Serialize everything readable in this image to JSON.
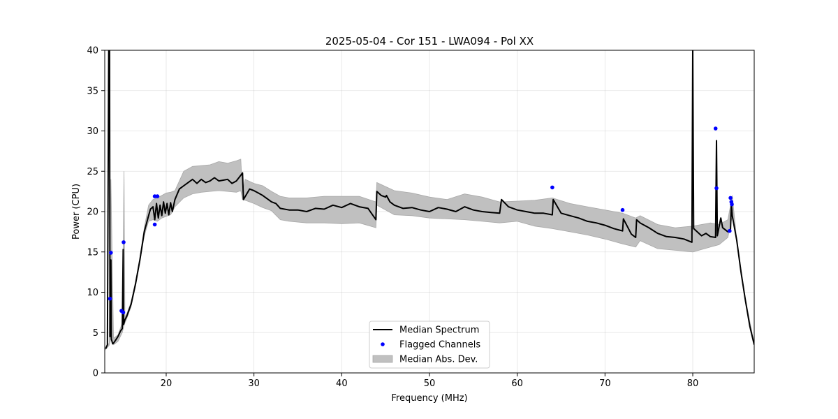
{
  "chart_data": {
    "type": "line",
    "title": "2025-05-04 - Cor 151 - LWA094 - Pol XX",
    "xlabel": "Frequency (MHz)",
    "ylabel": "Power (CPU)",
    "xlim": [
      13,
      87
    ],
    "ylim": [
      0,
      40
    ],
    "xticks": [
      20,
      30,
      40,
      50,
      60,
      70,
      80
    ],
    "yticks": [
      0,
      5,
      10,
      15,
      20,
      25,
      30,
      35,
      40
    ],
    "grid": true,
    "legend_position": "bottom-center",
    "colors": {
      "median": "#000000",
      "flagged": "#0000ff",
      "mad_fill": "#c0c0c0",
      "mad_edge": "#a8a8a8"
    },
    "series": [
      {
        "name": "Median Spectrum",
        "kind": "line",
        "x": [
          13.1,
          13.3,
          13.45,
          13.55,
          13.6,
          13.7,
          13.75,
          13.8,
          13.9,
          14.0,
          14.2,
          14.5,
          14.8,
          15.0,
          15.1,
          15.15,
          15.2,
          15.3,
          15.5,
          16.0,
          16.5,
          17.0,
          17.5,
          18.0,
          18.2,
          18.5,
          18.7,
          18.9,
          19.1,
          19.3,
          19.5,
          19.7,
          19.9,
          20.1,
          20.3,
          20.5,
          20.7,
          21.0,
          21.5,
          22.0,
          22.5,
          23.0,
          23.5,
          24.0,
          24.5,
          25.0,
          25.5,
          26.0,
          26.5,
          27.0,
          27.5,
          28.0,
          28.5,
          28.7,
          28.8,
          29.5,
          30.0,
          30.5,
          31.0,
          32.0,
          32.5,
          33.0,
          34.0,
          35.0,
          36.0,
          37.0,
          38.0,
          39.0,
          40.0,
          41.0,
          42.0,
          43.0,
          43.9,
          44.0,
          44.5,
          45.0,
          45.1,
          45.5,
          46.0,
          47.0,
          48.0,
          49.0,
          50.0,
          51.0,
          52.0,
          53.0,
          54.0,
          55.0,
          56.0,
          57.0,
          58.0,
          58.2,
          59.0,
          60.0,
          61.0,
          62.0,
          63.0,
          64.0,
          64.1,
          65.0,
          66.0,
          67.0,
          68.0,
          69.0,
          70.0,
          71.0,
          72.0,
          72.1,
          73.0,
          73.5,
          73.6,
          74.0,
          75.0,
          76.0,
          77.0,
          78.0,
          79.0,
          79.9,
          80.0,
          80.1,
          81.0,
          81.5,
          82.0,
          82.6,
          82.7,
          82.8,
          83.2,
          83.4,
          84.0,
          84.3,
          84.4,
          84.5,
          85.0,
          85.5,
          86.0,
          86.5,
          87.0
        ],
        "y": [
          3.0,
          3.5,
          40.0,
          40.0,
          4.5,
          14.0,
          4.2,
          4.0,
          3.6,
          3.7,
          4.0,
          4.5,
          5.2,
          5.5,
          15.3,
          6.0,
          6.2,
          6.6,
          7.0,
          8.5,
          11.0,
          14.0,
          17.5,
          19.5,
          20.3,
          20.6,
          19.0,
          21.0,
          19.2,
          20.8,
          19.5,
          21.2,
          19.8,
          21.0,
          19.6,
          21.1,
          20.0,
          21.5,
          22.8,
          23.2,
          23.6,
          24.0,
          23.5,
          24.0,
          23.6,
          23.8,
          24.2,
          23.8,
          23.9,
          24.0,
          23.5,
          23.8,
          24.5,
          24.8,
          21.5,
          22.8,
          22.6,
          22.3,
          22.0,
          21.2,
          21.0,
          20.4,
          20.2,
          20.2,
          20.0,
          20.4,
          20.3,
          20.8,
          20.5,
          21.0,
          20.6,
          20.4,
          19.0,
          22.5,
          22.0,
          21.8,
          22.0,
          21.2,
          20.8,
          20.4,
          20.5,
          20.2,
          20.0,
          20.5,
          20.3,
          20.0,
          20.6,
          20.2,
          20.0,
          19.9,
          19.8,
          21.5,
          20.6,
          20.2,
          20.0,
          19.8,
          19.8,
          19.6,
          21.5,
          19.8,
          19.5,
          19.2,
          18.8,
          18.6,
          18.3,
          17.9,
          17.6,
          19.1,
          17.2,
          16.8,
          19.0,
          18.6,
          18.0,
          17.3,
          16.9,
          16.8,
          16.6,
          16.2,
          40.0,
          17.9,
          17.0,
          17.3,
          16.9,
          16.8,
          28.8,
          17.0,
          19.2,
          18.0,
          17.5,
          17.8,
          21.0,
          19.5,
          16.5,
          12.5,
          9.0,
          5.8,
          3.5
        ]
      },
      {
        "name": "Flagged Channels",
        "kind": "scatter",
        "x": [
          13.6,
          13.7,
          14.9,
          15.1,
          15.15,
          18.7,
          18.7,
          19.0,
          64.0,
          72.0,
          82.6,
          82.7,
          84.2,
          84.3,
          84.4,
          84.45
        ],
        "y": [
          9.2,
          14.9,
          7.7,
          7.5,
          16.2,
          18.4,
          21.9,
          21.9,
          23.0,
          20.2,
          30.3,
          22.9,
          17.6,
          21.7,
          21.2,
          20.9
        ]
      },
      {
        "name": "Median Abs. Dev.",
        "kind": "band",
        "x": [
          13.1,
          13.5,
          13.7,
          14.0,
          14.5,
          15.0,
          15.2,
          15.3,
          15.5,
          16.0,
          16.5,
          17.0,
          17.5,
          18.0,
          18.5,
          19.0,
          19.5,
          20.0,
          20.5,
          21.0,
          22.0,
          23.0,
          24.0,
          25.0,
          26.0,
          27.0,
          28.0,
          28.5,
          28.7,
          29.0,
          30.0,
          31.0,
          32.0,
          33.0,
          34.0,
          36.0,
          38.0,
          40.0,
          42.0,
          43.9,
          44.0,
          46.0,
          48.0,
          50.0,
          52.0,
          54.0,
          56.0,
          58.0,
          60.0,
          62.0,
          64.0,
          66.0,
          68.0,
          70.0,
          72.0,
          73.5,
          74.0,
          76.0,
          78.0,
          80.0,
          82.0,
          83.0,
          84.0,
          84.5,
          85.0,
          86.0,
          87.0
        ],
        "lower": [
          2.9,
          3.4,
          4.2,
          3.5,
          3.9,
          5.0,
          5.9,
          6.2,
          6.7,
          8.2,
          10.7,
          13.7,
          17.0,
          18.8,
          19.0,
          18.8,
          19.2,
          19.4,
          19.6,
          20.6,
          21.7,
          22.2,
          22.4,
          22.5,
          22.6,
          22.5,
          22.4,
          22.6,
          21.5,
          21.4,
          21.0,
          20.5,
          20.1,
          19.0,
          18.8,
          18.6,
          18.6,
          18.5,
          18.6,
          18.0,
          20.8,
          19.6,
          19.5,
          19.2,
          19.1,
          19.0,
          18.8,
          18.6,
          18.8,
          18.2,
          17.9,
          17.5,
          17.1,
          16.6,
          16.0,
          15.6,
          16.4,
          15.4,
          15.2,
          15.0,
          15.6,
          15.9,
          16.8,
          19.4,
          16.4,
          8.8,
          3.4
        ],
        "upper": [
          3.1,
          3.7,
          24.0,
          4.3,
          4.7,
          6.2,
          25.0,
          6.9,
          7.3,
          8.8,
          11.3,
          14.3,
          18.0,
          20.8,
          21.5,
          21.7,
          22.0,
          22.3,
          22.4,
          22.6,
          25.0,
          25.6,
          25.7,
          25.8,
          26.2,
          26.0,
          26.3,
          26.5,
          22.4,
          24.0,
          23.5,
          23.2,
          22.5,
          21.9,
          21.7,
          21.7,
          21.9,
          21.9,
          21.9,
          21.2,
          23.6,
          22.6,
          22.3,
          21.8,
          21.5,
          22.2,
          21.8,
          21.2,
          21.3,
          21.4,
          21.7,
          21.0,
          20.6,
          20.2,
          19.8,
          19.2,
          19.5,
          18.4,
          18.0,
          18.2,
          18.6,
          18.4,
          19.0,
          22.0,
          16.6,
          9.2,
          3.6
        ]
      }
    ]
  }
}
